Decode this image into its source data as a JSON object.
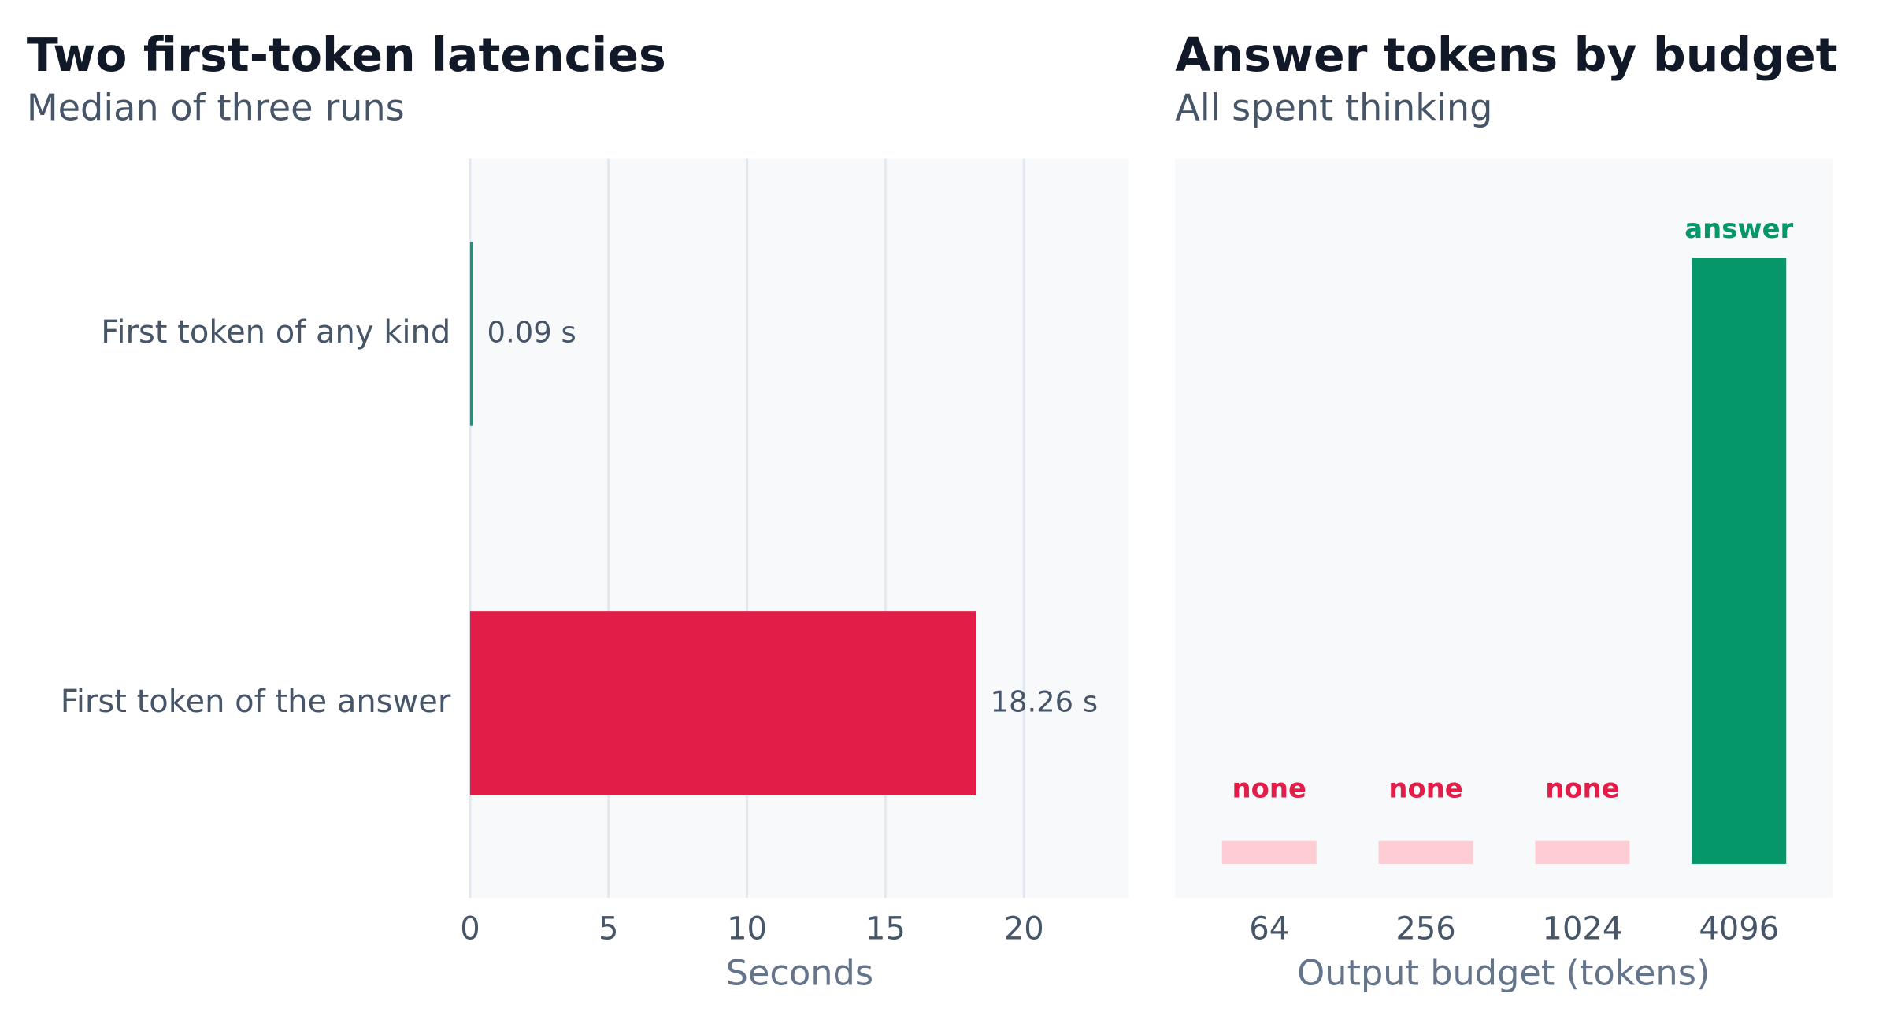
{
  "chart_data": [
    {
      "type": "hbar",
      "title": "Two first-token latencies",
      "subtitle": "Median of three runs",
      "categories": [
        "First token of any kind",
        "First token of the answer"
      ],
      "values": [
        0.09,
        18.26
      ],
      "value_labels": [
        "0.09 s",
        "18.26 s"
      ],
      "colors": [
        "#0f9a7f",
        "#e11d48"
      ],
      "xlim": [
        0,
        23.8
      ],
      "xticks": [
        0,
        5,
        10,
        15,
        20
      ],
      "xlabel": "Seconds",
      "grid": true
    },
    {
      "type": "labeled-bar",
      "title": "Answer tokens by budget",
      "subtitle": "All spent thinking",
      "categories": [
        "64",
        "256",
        "1024",
        "4096"
      ],
      "labels": [
        "none",
        "none",
        "none",
        "answer"
      ],
      "bar_colors": [
        "#fecdd3",
        "#fecdd3",
        "#fecdd3",
        "#059669"
      ],
      "label_colors": [
        "#e11d48",
        "#e11d48",
        "#e11d48",
        "#059669"
      ],
      "xlabel": "Output budget (tokens)"
    }
  ]
}
